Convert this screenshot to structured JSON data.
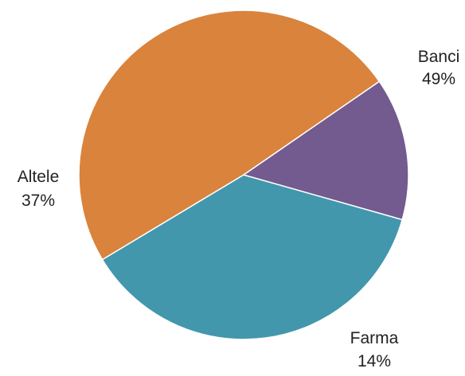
{
  "chart_data": {
    "type": "pie",
    "start_angle_deg": 211,
    "direction": "clockwise",
    "slices": [
      {
        "name": "Banci",
        "label": "49%",
        "value": 49,
        "color": "#D9833D"
      },
      {
        "name": "Farma",
        "label": "14%",
        "value": 14,
        "color": "#735A8F"
      },
      {
        "name": "Altele",
        "label": "37%",
        "value": 37,
        "color": "#4297AD"
      }
    ],
    "legend": "none",
    "labels": "outside"
  }
}
